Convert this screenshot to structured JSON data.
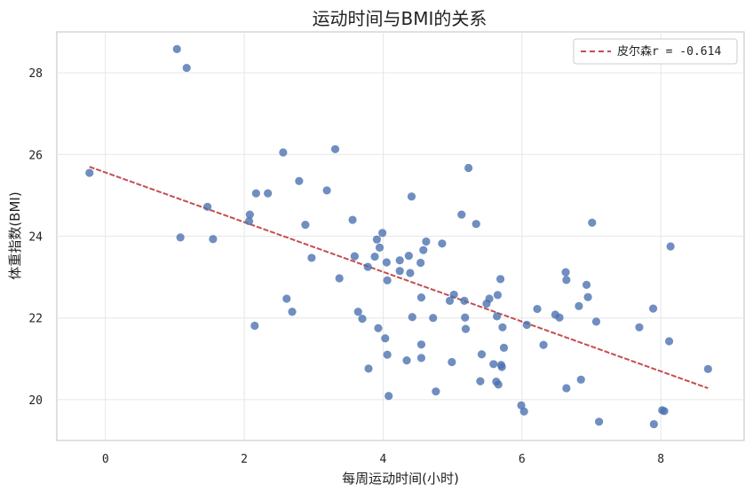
{
  "chart_data": {
    "type": "scatter",
    "title": "运动时间与BMI的关系",
    "xlabel": "每周运动时间(小时)",
    "ylabel": "体重指数(BMI)",
    "xlim": [
      -0.7,
      9.2
    ],
    "ylim": [
      19.0,
      29.0
    ],
    "xticks": [
      0,
      2,
      4,
      6,
      8
    ],
    "yticks": [
      20,
      22,
      24,
      26,
      28
    ],
    "grid": true,
    "legend_position": "top-right",
    "colors": {
      "points": "#4c72b0",
      "fit": "#c44e52"
    },
    "series": [
      {
        "points": [
          [
            -0.23,
            25.55
          ],
          [
            1.03,
            28.58
          ],
          [
            1.17,
            28.12
          ],
          [
            1.08,
            23.97
          ],
          [
            1.47,
            24.72
          ],
          [
            1.55,
            23.93
          ],
          [
            2.07,
            24.37
          ],
          [
            2.08,
            24.53
          ],
          [
            2.17,
            25.05
          ],
          [
            2.15,
            21.81
          ],
          [
            2.34,
            25.05
          ],
          [
            2.56,
            26.05
          ],
          [
            2.61,
            22.47
          ],
          [
            2.69,
            22.15
          ],
          [
            2.79,
            25.35
          ],
          [
            2.88,
            24.28
          ],
          [
            2.97,
            23.47
          ],
          [
            3.19,
            25.12
          ],
          [
            3.31,
            26.13
          ],
          [
            3.37,
            22.97
          ],
          [
            3.56,
            24.4
          ],
          [
            3.59,
            23.51
          ],
          [
            3.64,
            22.15
          ],
          [
            3.7,
            21.98
          ],
          [
            3.78,
            23.25
          ],
          [
            3.79,
            20.76
          ],
          [
            3.88,
            23.5
          ],
          [
            3.91,
            23.92
          ],
          [
            3.93,
            21.75
          ],
          [
            3.95,
            23.72
          ],
          [
            3.99,
            24.08
          ],
          [
            4.03,
            21.5
          ],
          [
            4.05,
            23.36
          ],
          [
            4.06,
            22.92
          ],
          [
            4.06,
            21.1
          ],
          [
            4.08,
            20.09
          ],
          [
            4.24,
            23.41
          ],
          [
            4.24,
            23.15
          ],
          [
            4.34,
            20.96
          ],
          [
            4.37,
            23.52
          ],
          [
            4.39,
            23.1
          ],
          [
            4.41,
            24.97
          ],
          [
            4.42,
            22.02
          ],
          [
            4.54,
            23.35
          ],
          [
            4.55,
            22.5
          ],
          [
            4.55,
            21.35
          ],
          [
            4.55,
            21.02
          ],
          [
            4.58,
            23.66
          ],
          [
            4.62,
            23.87
          ],
          [
            4.72,
            22.0
          ],
          [
            4.76,
            20.2
          ],
          [
            4.85,
            23.82
          ],
          [
            4.96,
            22.42
          ],
          [
            4.99,
            20.92
          ],
          [
            5.02,
            22.57
          ],
          [
            5.13,
            24.53
          ],
          [
            5.17,
            22.42
          ],
          [
            5.18,
            22.01
          ],
          [
            5.19,
            21.73
          ],
          [
            5.23,
            25.67
          ],
          [
            5.34,
            24.3
          ],
          [
            5.4,
            20.45
          ],
          [
            5.42,
            21.11
          ],
          [
            5.49,
            22.35
          ],
          [
            5.53,
            22.47
          ],
          [
            5.59,
            20.87
          ],
          [
            5.63,
            20.44
          ],
          [
            5.64,
            22.04
          ],
          [
            5.65,
            22.56
          ],
          [
            5.66,
            20.37
          ],
          [
            5.69,
            22.95
          ],
          [
            5.7,
            20.85
          ],
          [
            5.71,
            20.8
          ],
          [
            5.72,
            21.77
          ],
          [
            5.74,
            21.27
          ],
          [
            5.99,
            19.86
          ],
          [
            6.03,
            19.71
          ],
          [
            6.07,
            21.83
          ],
          [
            6.22,
            22.22
          ],
          [
            6.31,
            21.34
          ],
          [
            6.48,
            22.08
          ],
          [
            6.54,
            22.01
          ],
          [
            6.63,
            23.12
          ],
          [
            6.64,
            22.93
          ],
          [
            6.64,
            20.28
          ],
          [
            6.82,
            22.29
          ],
          [
            6.85,
            20.49
          ],
          [
            6.93,
            22.81
          ],
          [
            6.95,
            22.51
          ],
          [
            7.01,
            24.33
          ],
          [
            7.07,
            21.91
          ],
          [
            7.11,
            19.46
          ],
          [
            7.69,
            21.77
          ],
          [
            7.89,
            22.23
          ],
          [
            7.9,
            19.4
          ],
          [
            8.02,
            19.74
          ],
          [
            8.05,
            19.72
          ],
          [
            8.12,
            21.43
          ],
          [
            8.14,
            23.75
          ],
          [
            8.68,
            20.75
          ]
        ]
      },
      {
        "type": "line",
        "name": "皮尔森r = -0.614",
        "x": [
          -0.23,
          8.68
        ],
        "y": [
          25.7,
          20.28
        ]
      }
    ]
  }
}
